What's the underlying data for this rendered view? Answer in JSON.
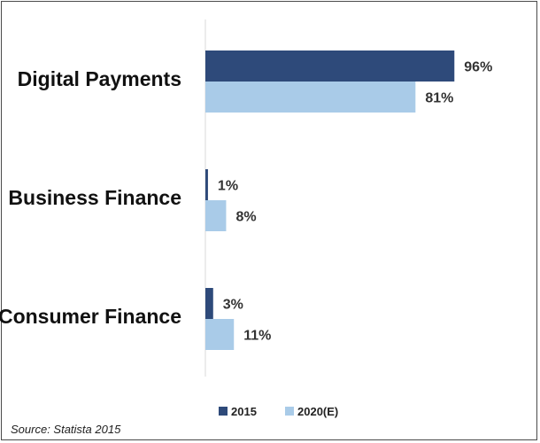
{
  "chart_data": {
    "type": "bar",
    "orientation": "horizontal",
    "categories": [
      "Digital Payments",
      "Business Finance",
      "Consumer Finance"
    ],
    "series": [
      {
        "name": "2015",
        "values": [
          96,
          1,
          3
        ],
        "color": "#2e4a7a"
      },
      {
        "name": "2020(E)",
        "values": [
          81,
          8,
          11
        ],
        "color": "#a9cbe8"
      }
    ],
    "value_labels": [
      [
        "96%",
        "1%",
        "3%"
      ],
      [
        "81%",
        "8%",
        "11%"
      ]
    ],
    "xlim": [
      0,
      100
    ],
    "legend_position": "bottom",
    "grid": false
  },
  "source": "Source:  Statista 2015"
}
